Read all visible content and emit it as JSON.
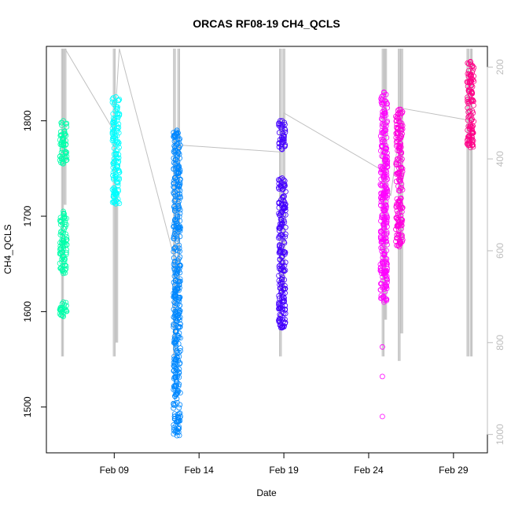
{
  "chart_data": {
    "type": "scatter",
    "title": "ORCAS RF08-19 CH4_QCLS",
    "xlabel": "Date",
    "ylabel": "CH4_QCLS",
    "x_ticks": [
      "Feb 09",
      "Feb 14",
      "Feb 19",
      "Feb 24",
      "Feb 29"
    ],
    "x_tick_days": [
      9,
      14,
      19,
      24,
      29
    ],
    "xlim_days": [
      5.0,
      31.0
    ],
    "ylim": [
      1452,
      1878
    ],
    "y_ticks": [
      1500,
      1600,
      1700,
      1800
    ],
    "y2_ticks": [
      200,
      400,
      600,
      800,
      1000
    ],
    "y2lim": [
      155,
      1040
    ],
    "y2_reversed": true,
    "grid": false,
    "legend": "none",
    "flights": [
      {
        "day": 6.0,
        "color": "#00ffaa",
        "clusters": [
          [
            1755,
            1800
          ],
          [
            1640,
            1705
          ],
          [
            1595,
            1610
          ]
        ]
      },
      {
        "day": 9.1,
        "color": "#00ffff",
        "clusters": [
          [
            1713,
            1825
          ]
        ]
      },
      {
        "day": 12.7,
        "color": "#0088ff",
        "clusters": [
          [
            1595,
            1790
          ],
          [
            1470,
            1595
          ]
        ]
      },
      {
        "day": 18.9,
        "color": "#4400ff",
        "clusters": [
          [
            1770,
            1800
          ],
          [
            1583,
            1740
          ]
        ]
      },
      {
        "day": 24.9,
        "color": "#ff00ff",
        "clusters": [
          [
            1610,
            1830
          ]
        ],
        "outliers": [
          1563,
          1532,
          1490
        ]
      },
      {
        "day": 25.8,
        "color": "#ff00dd",
        "clusters": [
          [
            1668,
            1812
          ]
        ]
      },
      {
        "day": 30.0,
        "color": "#ff0088",
        "clusters": [
          [
            1772,
            1862
          ]
        ]
      }
    ],
    "track": [
      {
        "day": 6.1,
        "y2": 160
      },
      {
        "day": 9.0,
        "y2": 340
      },
      {
        "day": 9.3,
        "y2": 160
      },
      {
        "day": 12.5,
        "y2": 610
      },
      {
        "day": 12.9,
        "y2": 370
      },
      {
        "day": 18.8,
        "y2": 385
      },
      {
        "day": 19.0,
        "y2": 300
      },
      {
        "day": 24.8,
        "y2": 425
      },
      {
        "day": 25.3,
        "y2": 480
      },
      {
        "day": 26.0,
        "y2": 290
      },
      {
        "day": 29.8,
        "y2": 315
      }
    ],
    "altitude_bars": [
      {
        "day": 5.95,
        "top": 160,
        "bottom": 830
      },
      {
        "day": 6.1,
        "top": 160,
        "bottom": 500
      },
      {
        "day": 9.0,
        "top": 160,
        "bottom": 830
      },
      {
        "day": 9.15,
        "top": 480,
        "bottom": 800
      },
      {
        "day": 12.55,
        "top": 160,
        "bottom": 830
      },
      {
        "day": 12.8,
        "top": 160,
        "bottom": 690
      },
      {
        "day": 18.8,
        "top": 160,
        "bottom": 830
      },
      {
        "day": 19.0,
        "top": 160,
        "bottom": 690
      },
      {
        "day": 24.85,
        "top": 160,
        "bottom": 830
      },
      {
        "day": 25.0,
        "top": 160,
        "bottom": 750
      },
      {
        "day": 25.8,
        "top": 160,
        "bottom": 840
      },
      {
        "day": 25.95,
        "top": 160,
        "bottom": 780
      },
      {
        "day": 29.85,
        "top": 160,
        "bottom": 830
      },
      {
        "day": 30.05,
        "top": 160,
        "bottom": 830
      }
    ]
  }
}
